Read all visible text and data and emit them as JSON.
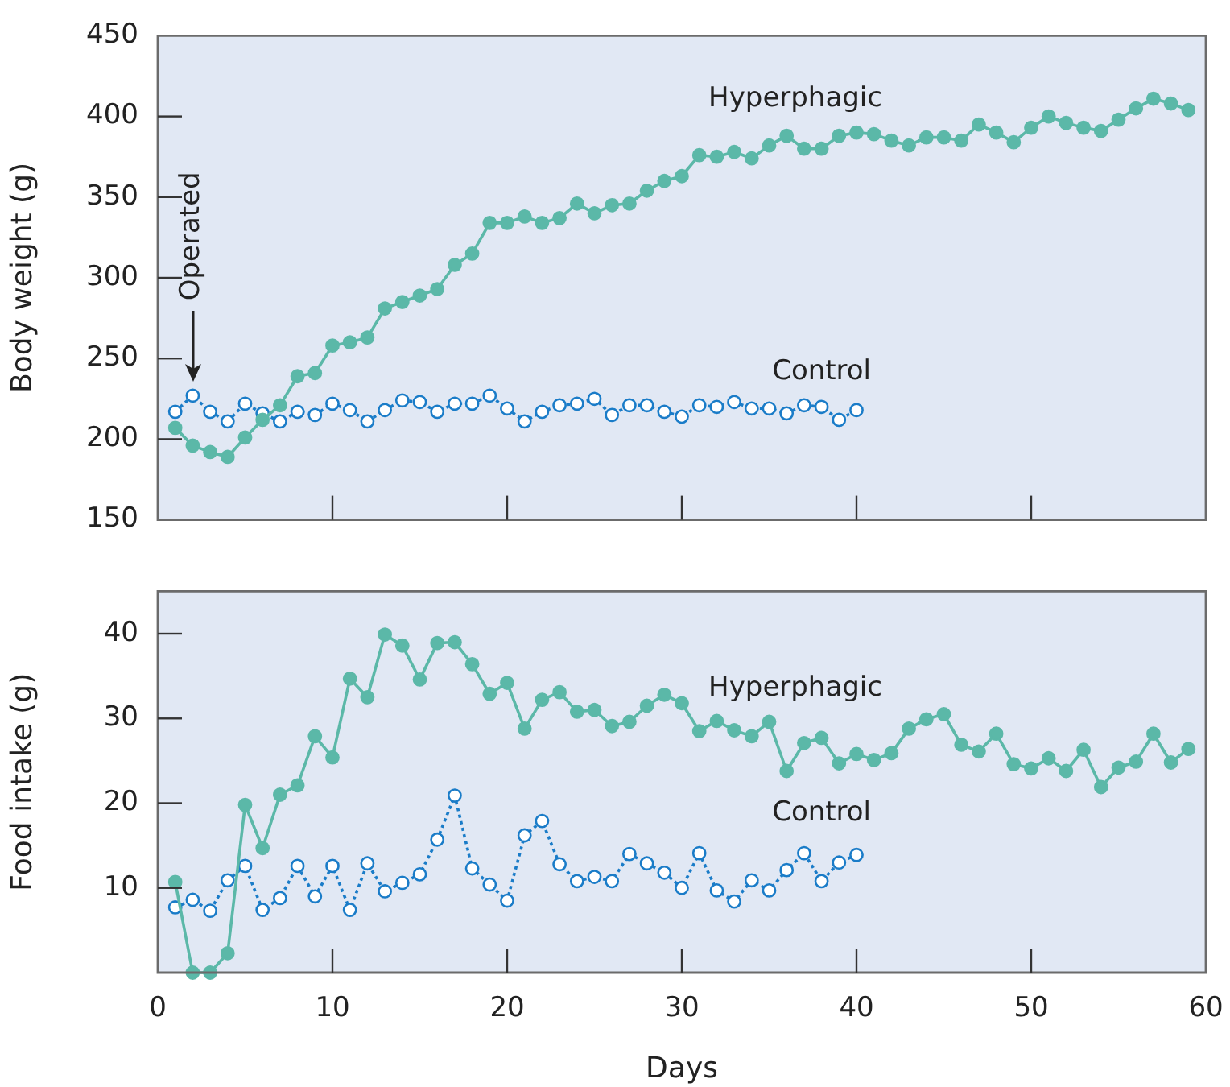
{
  "chart_data": [
    {
      "type": "line",
      "ylabel": "Body weight (g)",
      "xlim": [
        0,
        60
      ],
      "xticks": [
        0,
        10,
        20,
        30,
        40,
        50,
        60
      ],
      "ylim": [
        150,
        450
      ],
      "yticks": [
        150,
        200,
        250,
        300,
        350,
        400,
        450
      ],
      "tick_labels": "y",
      "grid": false,
      "legend": false,
      "marker": "circle",
      "annotations": [
        "Operated"
      ],
      "series": [
        {
          "name": "Hyperphagic",
          "color": "#5bb8a8",
          "line_style": "solid",
          "x": [
            1,
            2,
            3,
            4,
            5,
            6,
            7,
            8,
            9,
            10,
            11,
            12,
            13,
            14,
            15,
            16,
            17,
            18,
            19,
            20,
            21,
            22,
            23,
            24,
            25,
            26,
            27,
            28,
            29,
            30,
            31,
            32,
            33,
            34,
            35,
            36,
            37,
            38,
            39,
            40,
            41,
            42,
            43,
            44,
            45,
            46,
            47,
            48,
            49,
            50,
            51,
            52,
            53,
            54,
            55,
            56,
            57,
            58,
            59
          ],
          "values": [
            207,
            196,
            192,
            189,
            201,
            212,
            221,
            239,
            241,
            258,
            260,
            263,
            281,
            285,
            289,
            293,
            308,
            315,
            334,
            334,
            338,
            334,
            337,
            346,
            340,
            345,
            346,
            354,
            360,
            363,
            376,
            375,
            378,
            374,
            382,
            388,
            380,
            380,
            388,
            390,
            389,
            385,
            382,
            387,
            387,
            385,
            395,
            390,
            384,
            393,
            400,
            396,
            393,
            391,
            398,
            405,
            411,
            408,
            404
          ]
        },
        {
          "name": "Control",
          "color": "#1a7cc8",
          "line_style": "dotted",
          "x": [
            1,
            2,
            3,
            4,
            5,
            6,
            7,
            8,
            9,
            10,
            11,
            12,
            13,
            14,
            15,
            16,
            17,
            18,
            19,
            20,
            21,
            22,
            23,
            24,
            25,
            26,
            27,
            28,
            29,
            30,
            31,
            32,
            33,
            34,
            35,
            36,
            37,
            38,
            39,
            40
          ],
          "values": [
            217,
            227,
            217,
            211,
            222,
            216,
            211,
            217,
            215,
            222,
            218,
            211,
            218,
            224,
            223,
            217,
            222,
            222,
            227,
            219,
            211,
            217,
            221,
            222,
            225,
            215,
            221,
            221,
            217,
            214,
            221,
            220,
            223,
            219,
            219,
            216,
            221,
            220,
            212,
            218
          ]
        }
      ]
    },
    {
      "type": "line",
      "xlabel": "Days",
      "ylabel": "Food intake (g)",
      "xlim": [
        0,
        60
      ],
      "xticks": [
        0,
        10,
        20,
        30,
        40,
        50,
        60
      ],
      "ylim": [
        0,
        45
      ],
      "yticks": [
        10,
        20,
        30,
        40
      ],
      "grid": false,
      "legend": false,
      "marker": "circle",
      "series": [
        {
          "name": "Hyperphagic",
          "color": "#5bb8a8",
          "line_style": "solid",
          "x": [
            1,
            2,
            3,
            4,
            5,
            6,
            7,
            8,
            9,
            10,
            11,
            12,
            13,
            14,
            15,
            16,
            17,
            18,
            19,
            20,
            21,
            22,
            23,
            24,
            25,
            26,
            27,
            28,
            29,
            30,
            31,
            32,
            33,
            34,
            35,
            36,
            37,
            38,
            39,
            40,
            41,
            42,
            43,
            44,
            45,
            46,
            47,
            48,
            49,
            50,
            51,
            52,
            53,
            54,
            55,
            56,
            57,
            58,
            59
          ],
          "values": [
            10.7,
            0,
            0,
            2.3,
            19.8,
            14.7,
            21,
            22.1,
            27.9,
            25.4,
            34.7,
            32.5,
            39.9,
            38.6,
            34.6,
            38.9,
            39,
            36.4,
            32.9,
            34.2,
            28.8,
            32.2,
            33.1,
            30.8,
            31,
            29.1,
            29.6,
            31.5,
            32.8,
            31.8,
            28.5,
            29.7,
            28.6,
            27.9,
            29.6,
            23.8,
            27.1,
            27.7,
            24.7,
            25.8,
            25.1,
            25.9,
            28.8,
            29.9,
            30.5,
            26.9,
            26.1,
            28.2,
            24.6,
            24.1,
            25.3,
            23.8,
            26.3,
            21.9,
            24.2,
            24.9,
            28.2,
            24.8,
            26.4
          ]
        },
        {
          "name": "Control",
          "color": "#1a7cc8",
          "line_style": "dotted",
          "x": [
            1,
            2,
            3,
            4,
            5,
            6,
            7,
            8,
            9,
            10,
            11,
            12,
            13,
            14,
            15,
            16,
            17,
            18,
            19,
            20,
            21,
            22,
            23,
            24,
            25,
            26,
            27,
            28,
            29,
            30,
            31,
            32,
            33,
            34,
            35,
            36,
            37,
            38,
            39,
            40
          ],
          "values": [
            7.7,
            8.6,
            7.3,
            10.9,
            12.6,
            7.4,
            8.8,
            12.6,
            9,
            12.6,
            7.4,
            12.9,
            9.6,
            10.6,
            11.6,
            15.7,
            20.9,
            12.3,
            10.4,
            8.5,
            16.2,
            17.9,
            12.8,
            10.8,
            11.3,
            10.8,
            14,
            12.9,
            11.8,
            10,
            14.1,
            9.7,
            8.4,
            10.9,
            9.7,
            12.1,
            14.1,
            10.8,
            13,
            13.9
          ]
        }
      ]
    }
  ]
}
